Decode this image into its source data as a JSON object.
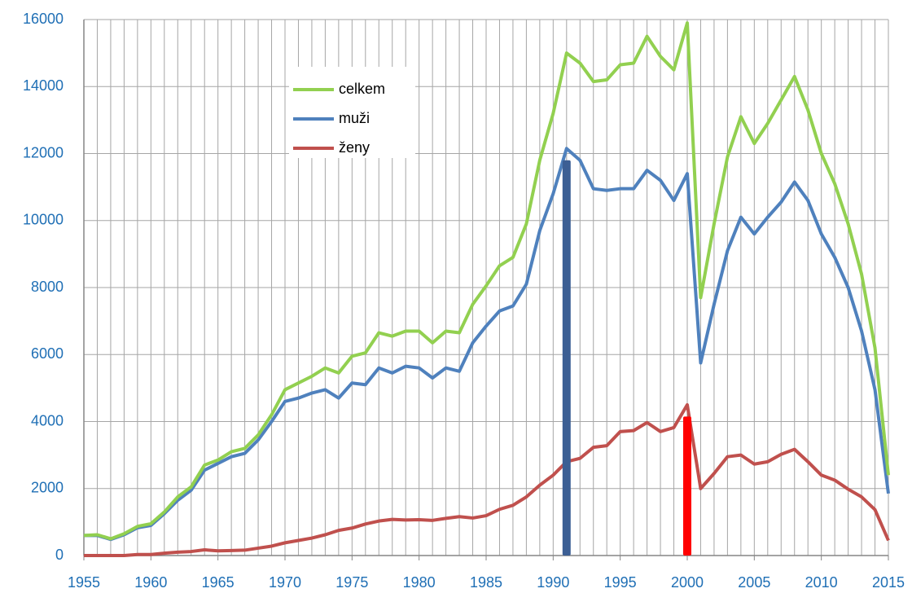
{
  "chart_data": {
    "type": "line",
    "x": [
      1955,
      1956,
      1957,
      1958,
      1959,
      1960,
      1961,
      1962,
      1963,
      1964,
      1965,
      1966,
      1967,
      1968,
      1969,
      1970,
      1971,
      1972,
      1973,
      1974,
      1975,
      1976,
      1977,
      1978,
      1979,
      1980,
      1981,
      1982,
      1983,
      1984,
      1985,
      1986,
      1987,
      1988,
      1989,
      1990,
      1991,
      1992,
      1993,
      1994,
      1995,
      1996,
      1997,
      1998,
      1999,
      2000,
      2001,
      2002,
      2003,
      2004,
      2005,
      2006,
      2007,
      2008,
      2009,
      2010,
      2011,
      2012,
      2013,
      2014,
      2015
    ],
    "series": [
      {
        "name": "celkem",
        "color": "#92d050",
        "values": [
          600,
          620,
          500,
          650,
          870,
          950,
          1300,
          1750,
          2050,
          2700,
          2850,
          3100,
          3200,
          3600,
          4200,
          4950,
          5150,
          5350,
          5600,
          5450,
          5950,
          6050,
          6650,
          6550,
          6700,
          6700,
          6350,
          6700,
          6650,
          7500,
          8050,
          8650,
          8900,
          9900,
          11800,
          13200,
          15000,
          14700,
          14150,
          14200,
          14650,
          14700,
          15500,
          14900,
          14500,
          15900,
          7700,
          9900,
          11900,
          13100,
          12300,
          12900,
          13600,
          14300,
          13300,
          12000,
          11100,
          9900,
          8400,
          6200,
          2400
        ]
      },
      {
        "name": "muži",
        "color": "#4f81bd",
        "values": [
          600,
          600,
          480,
          620,
          830,
          900,
          1250,
          1650,
          1950,
          2550,
          2750,
          2950,
          3050,
          3450,
          4000,
          4600,
          4700,
          4850,
          4950,
          4700,
          5150,
          5100,
          5600,
          5450,
          5650,
          5600,
          5300,
          5600,
          5500,
          6350,
          6850,
          7300,
          7450,
          8100,
          9700,
          10800,
          12150,
          11800,
          10950,
          10900,
          10950,
          10950,
          11500,
          11200,
          10600,
          11400,
          5750,
          7500,
          9100,
          10100,
          9600,
          10100,
          10550,
          11150,
          10600,
          9600,
          8900,
          8000,
          6700,
          4950,
          1850
        ]
      },
      {
        "name": "ženy",
        "color": "#c0504d",
        "values": [
          0,
          0,
          0,
          0,
          30,
          30,
          70,
          100,
          120,
          170,
          140,
          150,
          160,
          220,
          280,
          380,
          450,
          520,
          620,
          750,
          820,
          940,
          1030,
          1080,
          1060,
          1070,
          1050,
          1110,
          1160,
          1120,
          1190,
          1380,
          1500,
          1750,
          2100,
          2400,
          2800,
          2900,
          3230,
          3280,
          3700,
          3730,
          3970,
          3700,
          3820,
          4500,
          2000,
          2450,
          2950,
          3000,
          2730,
          2800,
          3020,
          3170,
          2800,
          2400,
          2250,
          1980,
          1750,
          1370,
          450
        ]
      }
    ],
    "highlight_bars": [
      {
        "x": 1991,
        "value": 11800,
        "color": "#3c5f94"
      },
      {
        "x": 2000,
        "value": 4150,
        "color": "#ff0000"
      }
    ],
    "xlim": [
      1955,
      2015
    ],
    "xticks": [
      1955,
      1960,
      1965,
      1970,
      1975,
      1980,
      1985,
      1990,
      1995,
      2000,
      2005,
      2010,
      2015
    ],
    "ylim": [
      0,
      16000
    ],
    "yticks": [
      0,
      2000,
      4000,
      6000,
      8000,
      10000,
      12000,
      14000,
      16000
    ],
    "grid": true,
    "tick_label_color": "#1f6fb5"
  }
}
